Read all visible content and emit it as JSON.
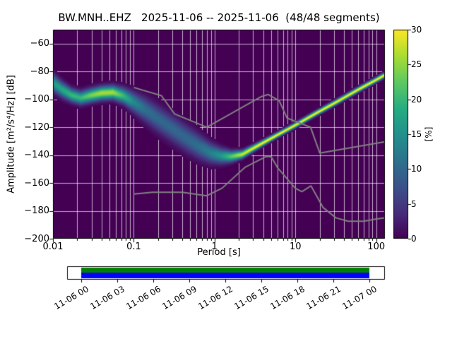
{
  "title": "BW.MNH..EHZ   2025-11-06 -- 2025-11-06  (48/48 segments)",
  "chart_data": {
    "type": "heatmap",
    "title": "BW.MNH..EHZ   2025-11-06 -- 2025-11-06  (48/48 segments)",
    "xlabel": "Period [s]",
    "ylabel": "Amplitude [m²/s⁴/Hz] [dB]",
    "xscale": "log",
    "xlim": [
      0.01,
      128
    ],
    "ylim": [
      -200,
      -50
    ],
    "xticks": [
      0.01,
      0.1,
      1,
      10,
      100
    ],
    "xtick_labels": [
      "0.01",
      "0.1",
      "1",
      "10",
      "100"
    ],
    "yticks": [
      -60,
      -80,
      -100,
      -120,
      -140,
      -160,
      -180,
      -200
    ],
    "grid": true,
    "background_color": "#440154",
    "colormap": "viridis",
    "colorbar": {
      "label": "[%]",
      "min": 0,
      "max": 30,
      "ticks": [
        0,
        5,
        10,
        15,
        20,
        25,
        30
      ]
    },
    "psd_distribution": {
      "periods": [
        0.01,
        0.013,
        0.017,
        0.022,
        0.03,
        0.04,
        0.055,
        0.075,
        0.1,
        0.14,
        0.2,
        0.3,
        0.45,
        0.65,
        0.9,
        1.2,
        1.6,
        2.2,
        3.5,
        6,
        10,
        18,
        32,
        60,
        100,
        128
      ],
      "mode_db": [
        -88,
        -93,
        -97,
        -99,
        -97,
        -95.5,
        -95,
        -97.5,
        -102,
        -107.5,
        -114,
        -121,
        -128,
        -134,
        -138.5,
        -140.5,
        -141,
        -139.5,
        -133,
        -125.5,
        -118.5,
        -110,
        -102,
        -93,
        -86,
        -82.5
      ],
      "spread_db": [
        4,
        3.5,
        3,
        3,
        3,
        3,
        3,
        3.5,
        4.5,
        5.5,
        6,
        6,
        6,
        5.5,
        4.5,
        3.5,
        2.5,
        1.8,
        1.4,
        1.2,
        1.2,
        1.2,
        1.2,
        1.2,
        1.2,
        1.2
      ],
      "peak_percent": [
        16,
        18,
        20,
        20,
        24,
        26,
        26,
        20,
        14,
        11,
        10,
        10,
        10,
        11,
        13,
        16,
        22,
        28,
        30,
        30,
        30,
        30,
        30,
        30,
        30,
        30
      ]
    },
    "noise_models": {
      "color": "#808080",
      "nlnm": {
        "periods": [
          0.1,
          0.17,
          0.4,
          0.8,
          1.24,
          2.4,
          4.3,
          5,
          6,
          10,
          12,
          15.6,
          21.9,
          31.6,
          45,
          70,
          101,
          128
        ],
        "db": [
          -168,
          -166.7,
          -166.7,
          -169.2,
          -163.7,
          -148.6,
          -141.1,
          -141.1,
          -149,
          -163.8,
          -166.2,
          -162.1,
          -177.5,
          -185,
          -187.5,
          -187.5,
          -185.8,
          -185
        ]
      },
      "nhnm": {
        "periods": [
          0.1,
          0.22,
          0.32,
          0.8,
          3.8,
          4.6,
          6.3,
          7.9,
          15.4,
          20,
          128
        ],
        "db": [
          -91.5,
          -97.4,
          -110.5,
          -120,
          -98,
          -96.5,
          -101,
          -113.5,
          -120,
          -138.5,
          -130.4
        ]
      }
    }
  },
  "coverage": {
    "tick_labels": [
      "11-06 00",
      "11-06 03",
      "11-06 06",
      "11-06 09",
      "11-06 12",
      "11-06 15",
      "11-06 18",
      "11-06 21",
      "11-07 00"
    ],
    "segments_color": "#008000",
    "data_color": "#0000ff",
    "box_color": "#ffffff",
    "border_color": "#000000"
  }
}
